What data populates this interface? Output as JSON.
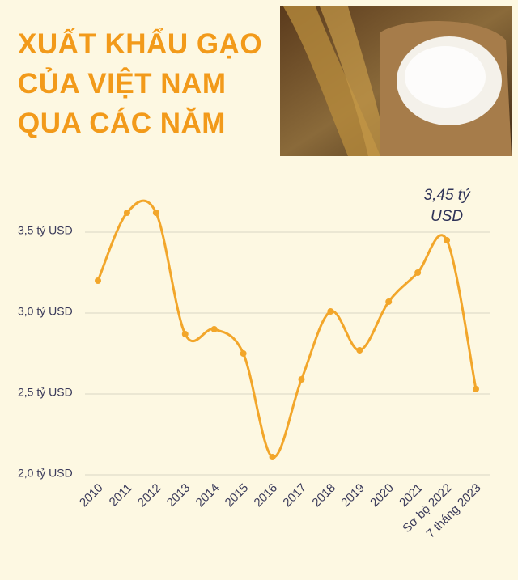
{
  "chart_data": {
    "type": "line",
    "title_lines": [
      "XUẤT KHẨU GẠO",
      "CỦA VIỆT NAM",
      "QUA CÁC NĂM"
    ],
    "categories": [
      "2010",
      "2011",
      "2012",
      "2013",
      "2014",
      "2015",
      "2016",
      "2017",
      "2018",
      "2019",
      "2020",
      "2021",
      "Sơ bộ 2022",
      "7 tháng 2023"
    ],
    "values": [
      3.2,
      3.62,
      3.62,
      2.87,
      2.9,
      2.75,
      2.11,
      2.59,
      3.01,
      2.77,
      3.07,
      3.25,
      3.45,
      2.53
    ],
    "value_labels": [
      null,
      null,
      null,
      null,
      null,
      null,
      null,
      null,
      null,
      null,
      null,
      null,
      "3,45 tỷ USD",
      null
    ],
    "color": "#f2a62a",
    "ylim": [
      2.0,
      3.75
    ],
    "yticks": [
      {
        "value": 2.0,
        "label": "2,0 tỷ USD"
      },
      {
        "value": 2.5,
        "label": "2,5 tỷ USD"
      },
      {
        "value": 3.0,
        "label": "3,0 tỷ USD"
      },
      {
        "value": 3.5,
        "label": "3,5 tỷ USD"
      }
    ],
    "grid": true
  }
}
